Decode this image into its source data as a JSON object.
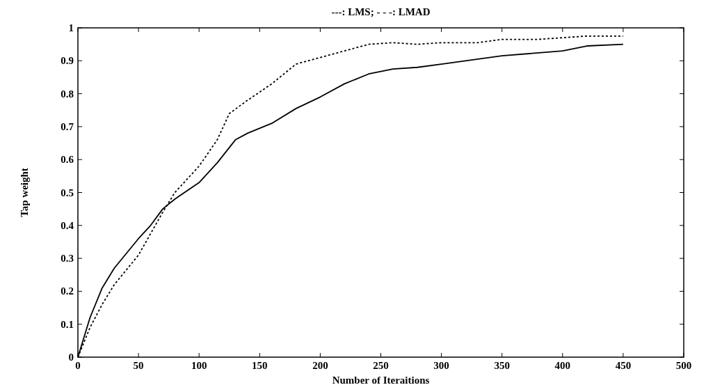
{
  "chart_data": {
    "type": "line",
    "title": "---: LMS;   - - -: LMAD",
    "xlabel": "Number of Iteraitions",
    "ylabel": "Tap weight",
    "xlim": [
      0,
      500
    ],
    "xticks": [
      0,
      50,
      100,
      150,
      200,
      250,
      300,
      350,
      400,
      450,
      500
    ],
    "ylim": [
      0,
      1
    ],
    "yticks": [
      0,
      0.1,
      0.2,
      0.3,
      0.4,
      0.5,
      0.6,
      0.7,
      0.8,
      0.9,
      1
    ],
    "series": [
      {
        "color": "#000000",
        "line_style": "solid",
        "x": [
          0,
          10,
          20,
          30,
          50,
          60,
          70,
          80,
          100,
          115,
          130,
          140,
          160,
          180,
          200,
          220,
          240,
          260,
          280,
          300,
          350,
          400,
          420,
          450
        ],
        "values": [
          0,
          0.12,
          0.21,
          0.27,
          0.36,
          0.4,
          0.45,
          0.48,
          0.53,
          0.59,
          0.66,
          0.68,
          0.71,
          0.755,
          0.79,
          0.83,
          0.86,
          0.875,
          0.88,
          0.89,
          0.915,
          0.93,
          0.945,
          0.95
        ]
      },
      {
        "color": "#000000",
        "line_style": "dotted",
        "x": [
          0,
          10,
          20,
          30,
          50,
          70,
          80,
          100,
          115,
          125,
          140,
          160,
          180,
          200,
          220,
          240,
          260,
          280,
          300,
          330,
          350,
          380,
          400,
          420,
          450
        ],
        "values": [
          0,
          0.09,
          0.16,
          0.22,
          0.31,
          0.44,
          0.5,
          0.58,
          0.66,
          0.74,
          0.78,
          0.83,
          0.89,
          0.91,
          0.93,
          0.95,
          0.955,
          0.95,
          0.955,
          0.955,
          0.965,
          0.965,
          0.97,
          0.975,
          0.975
        ]
      }
    ]
  }
}
